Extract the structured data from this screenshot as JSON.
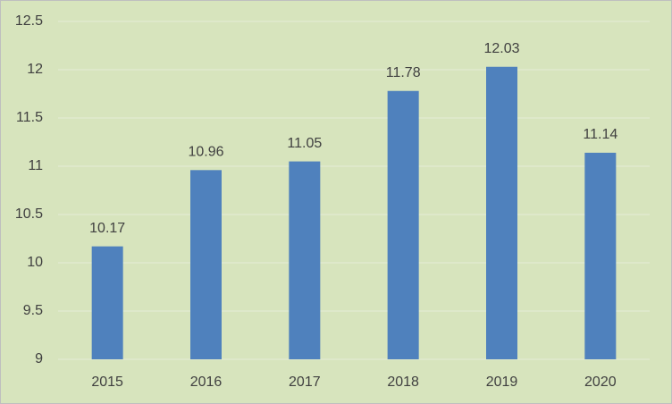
{
  "chart_data": {
    "type": "bar",
    "categories": [
      "2015",
      "2016",
      "2017",
      "2018",
      "2019",
      "2020"
    ],
    "values": [
      10.17,
      10.96,
      11.05,
      11.78,
      12.03,
      11.14
    ],
    "color": "#4f81bd",
    "ylim": [
      9,
      12.5
    ],
    "yticks": [
      9,
      9.5,
      10,
      10.5,
      11,
      11.5,
      12,
      12.5
    ],
    "grid": true,
    "data_labels": true
  }
}
